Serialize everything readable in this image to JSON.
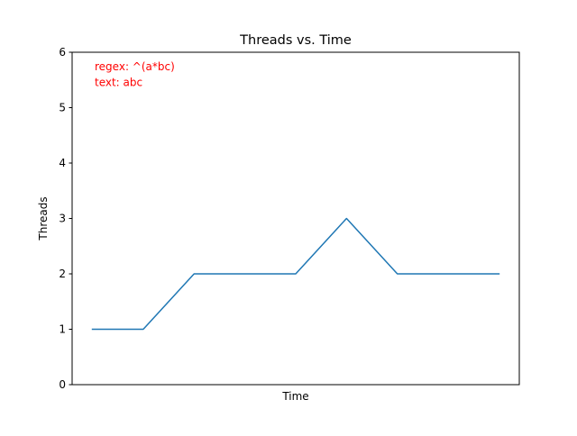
{
  "chart_data": {
    "type": "line",
    "title": "Threads vs. Time",
    "xlabel": "Time",
    "ylabel": "Threads",
    "x": [
      0,
      1,
      2,
      3,
      4,
      5,
      6,
      7,
      8
    ],
    "series": [
      {
        "values": [
          1,
          1,
          2,
          2,
          2,
          3,
          2,
          2,
          2
        ],
        "color": "#1f77b4"
      }
    ],
    "ylim": [
      0,
      6
    ],
    "yticks": [
      0,
      1,
      2,
      3,
      4,
      5,
      6
    ],
    "xticks": [],
    "grid": false,
    "annotations": [
      {
        "text": "regex: ^(a*bc)",
        "color": "#ff0000"
      },
      {
        "text": "text: abc",
        "color": "#ff0000"
      }
    ]
  }
}
